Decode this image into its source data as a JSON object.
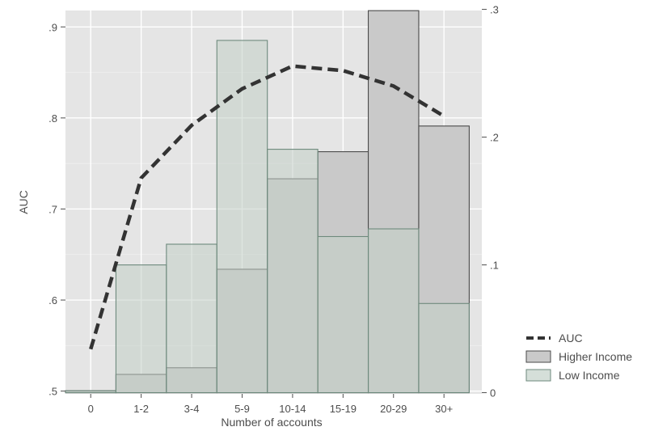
{
  "chart_data": {
    "type": "bar",
    "xlabel": "Number of accounts",
    "ylabel": "AUC",
    "categories": [
      "0",
      "1-2",
      "3-4",
      "5-9",
      "10-14",
      "15-19",
      "20-29",
      "30+"
    ],
    "y_left_ticks": [
      ".5",
      ".6",
      ".7",
      ".8",
      ".9"
    ],
    "y_left_tick_values": [
      0.5,
      0.6,
      0.7,
      0.8,
      0.9
    ],
    "y_right_ticks": [
      "0",
      ".1",
      ".2",
      ".3"
    ],
    "y_right_tick_values": [
      0,
      0.1,
      0.2,
      0.3
    ],
    "ylim_left": [
      0.497,
      0.918
    ],
    "ylim_right": [
      -0.0009,
      0.2991
    ],
    "grid": true,
    "legend_position": "right",
    "series": [
      {
        "name": "AUC",
        "kind": "line",
        "axis": "left",
        "style": "dashed",
        "color": "#333333",
        "values": [
          0.546,
          0.734,
          0.792,
          0.832,
          0.857,
          0.852,
          0.835,
          0.802
        ]
      },
      {
        "name": "Higher Income",
        "kind": "bar",
        "axis": "right",
        "color": "#c9c9c9",
        "values": [
          0.0015,
          0.0143,
          0.0195,
          0.0966,
          0.1674,
          0.1886,
          0.299,
          0.2087
        ]
      },
      {
        "name": "Low Income",
        "kind": "bar",
        "axis": "right",
        "color": "#c2cfc7",
        "values": [
          0.0015,
          0.1,
          0.1162,
          0.2757,
          0.1905,
          0.1222,
          0.1282,
          0.0698
        ]
      }
    ]
  }
}
